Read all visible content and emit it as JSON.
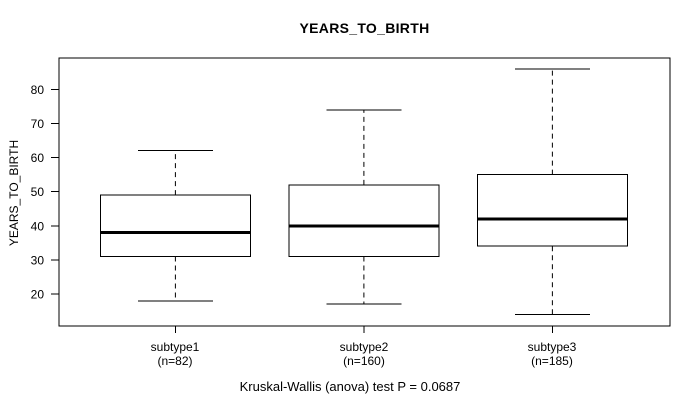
{
  "page": {
    "title": "YEARS_TO_BIRTH",
    "y_axis_label": "YEARS_TO_BIRTH",
    "caption": "Kruskal-Wallis (anova) test P = 0.0687"
  },
  "chart_data": {
    "type": "boxplot",
    "title": "YEARS_TO_BIRTH",
    "ylabel": "YEARS_TO_BIRTH",
    "xlabel": "",
    "annotation": "Kruskal-Wallis (anova) test P = 0.0687",
    "grid": false,
    "legend": "none",
    "ylim": [
      10.6,
      89.2
    ],
    "yticks": [
      20,
      30,
      40,
      50,
      60,
      70,
      80
    ],
    "categories": [
      "subtype1",
      "subtype2",
      "subtype3"
    ],
    "category_sublabels": [
      "(n=82)",
      "(n=160)",
      "(n=185)"
    ],
    "series": [
      {
        "name": "subtype1",
        "n": 82,
        "whisker_low": 18,
        "q1": 31,
        "median": 38,
        "q3": 49,
        "whisker_high": 62
      },
      {
        "name": "subtype2",
        "n": 160,
        "whisker_low": 17,
        "q1": 31,
        "median": 40,
        "q3": 52,
        "whisker_high": 74
      },
      {
        "name": "subtype3",
        "n": 185,
        "whisker_low": 14,
        "q1": 34,
        "median": 42,
        "q3": 55,
        "whisker_high": 86
      }
    ],
    "colors": {
      "background": "#ffffff",
      "line": "#000000",
      "box_fill": "#ffffff"
    }
  }
}
